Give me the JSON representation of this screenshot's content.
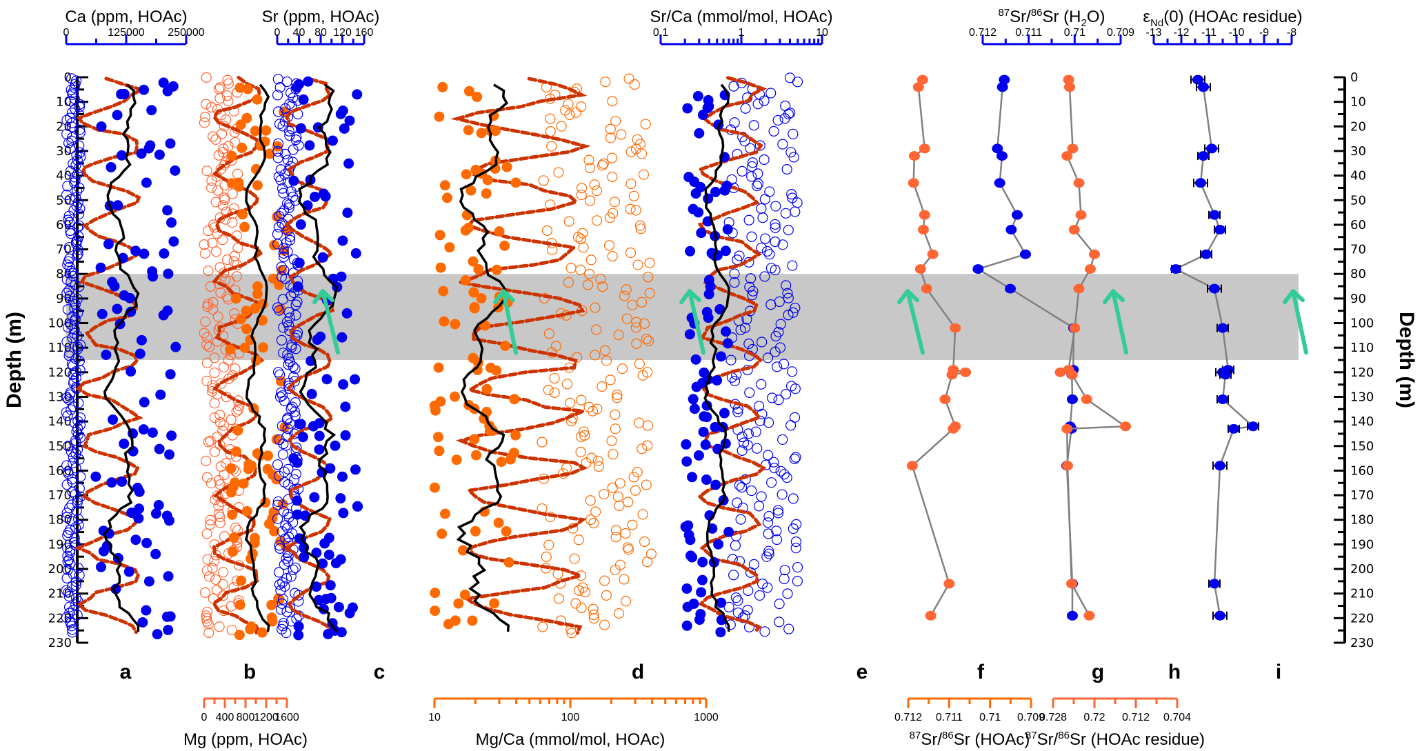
{
  "chart_data": {
    "type": "scatter",
    "title": "",
    "ylabel": "Depth (m)",
    "ylim": [
      0,
      230
    ],
    "yticks": [
      0,
      10,
      20,
      30,
      40,
      50,
      60,
      70,
      80,
      90,
      100,
      110,
      120,
      130,
      140,
      150,
      160,
      170,
      180,
      190,
      200,
      210,
      220,
      230
    ],
    "shaded_interval_m": [
      80,
      115
    ],
    "panel_labels": [
      "a",
      "b",
      "c",
      "d",
      "e",
      "f",
      "g",
      "h",
      "i"
    ],
    "colors": {
      "blue": "#0000ee",
      "orange": "#ff6a00",
      "orange_light": "#ff6633",
      "dashed": "#cc3300",
      "black": "#000000",
      "arrow": "#33cc99",
      "shade": "#c8c8c8",
      "connector": "#808080"
    },
    "axes": [
      {
        "id": "ca",
        "label": "Ca (ppm, HOAc)",
        "position": "top",
        "color": "#0000ee",
        "scale": "linear",
        "range": [
          0,
          250000
        ],
        "ticks": [
          "0",
          "125000",
          "250000"
        ]
      },
      {
        "id": "sr",
        "label": "Sr (ppm, HOAc)",
        "position": "top",
        "color": "#0000ee",
        "scale": "linear",
        "range": [
          0,
          160
        ],
        "ticks": [
          "0",
          "40",
          "80",
          "120",
          "160"
        ]
      },
      {
        "id": "srca",
        "label": "Sr/Ca (mmol/mol, HOAc)",
        "position": "top",
        "color": "#0000ee",
        "scale": "log",
        "range": [
          0.1,
          10
        ],
        "ticks": [
          "0.1",
          "1",
          "10"
        ]
      },
      {
        "id": "srh2o",
        "label_pre": "87",
        "label_mid": "Sr/",
        "label_mid2": "86",
        "label_post": "Sr (H",
        "label_sub": "2",
        "label_end": "O)",
        "position": "top",
        "color": "#0000ee",
        "scale": "linear",
        "range": [
          0.712,
          0.709
        ],
        "ticks": [
          "0.712",
          "0.711",
          "0.71",
          "0.709"
        ]
      },
      {
        "id": "end",
        "label_eps": "ε",
        "label_sub": "Nd",
        "label_post": "(0) (HOAc residue)",
        "position": "top",
        "color": "#0000ee",
        "scale": "linear",
        "range": [
          -13,
          -8
        ],
        "ticks": [
          "-13",
          "-12",
          "-11",
          "-10",
          "-9",
          "-8"
        ]
      },
      {
        "id": "mg",
        "label": "Mg (ppm, HOAc)",
        "position": "bottom",
        "color": "#ff6633",
        "scale": "linear",
        "range": [
          0,
          1600
        ],
        "ticks": [
          "0",
          "400",
          "800",
          "1200",
          "1600"
        ]
      },
      {
        "id": "mgca",
        "label": "Mg/Ca (mmol/mol, HOAc)",
        "position": "bottom",
        "color": "#ff6a00",
        "scale": "log",
        "range": [
          10,
          1000
        ],
        "ticks": [
          "10",
          "100",
          "1000"
        ]
      },
      {
        "id": "srhoac",
        "label_pre": "87",
        "label_mid": "Sr/",
        "label_mid2": "86",
        "label_post": "Sr (HOAc)",
        "position": "bottom",
        "color": "#ff6a00",
        "scale": "linear",
        "range": [
          0.712,
          0.709
        ],
        "ticks": [
          "0.712",
          "0.711",
          "0.71",
          "0.709"
        ]
      },
      {
        "id": "srres",
        "label_pre": "87",
        "label_mid": "Sr/",
        "label_mid2": "86",
        "label_post": "Sr (HOAc residue)",
        "position": "bottom",
        "color": "#ff6633",
        "scale": "linear",
        "range": [
          0.728,
          0.704
        ],
        "ticks": [
          "0.728",
          "0.72",
          "0.712",
          "0.704"
        ]
      }
    ],
    "series": [
      {
        "name": "87Sr/86Sr (HOAc)",
        "panel": "f",
        "axis": "srhoac",
        "color": "#ff6633",
        "style": "filled-line",
        "points": [
          [
            1,
            0.71165
          ],
          [
            4,
            0.71175
          ],
          [
            29,
            0.7116
          ],
          [
            32,
            0.71185
          ],
          [
            43,
            0.71187
          ],
          [
            56,
            0.7116
          ],
          [
            62,
            0.71163
          ],
          [
            72,
            0.7114
          ],
          [
            78,
            0.7117
          ],
          [
            86,
            0.71155
          ],
          [
            102,
            0.71085
          ],
          [
            119,
            0.7109
          ],
          [
            120,
            0.7106
          ],
          [
            121,
            0.71093
          ],
          [
            131,
            0.7111
          ],
          [
            142,
            0.71085
          ],
          [
            143,
            0.7109
          ],
          [
            158,
            0.7119
          ],
          [
            206,
            0.711
          ],
          [
            219,
            0.71145
          ]
        ]
      },
      {
        "name": "87Sr/86Sr (H2O)",
        "panel": "g",
        "axis": "srh2o",
        "color": "#0000ee",
        "style": "filled-line",
        "points": [
          [
            1,
            0.71153
          ],
          [
            4,
            0.71157
          ],
          [
            29,
            0.71168
          ],
          [
            32,
            0.71158
          ],
          [
            43,
            0.71163
          ],
          [
            56,
            0.71125
          ],
          [
            62,
            0.71138
          ],
          [
            72,
            0.71107
          ],
          [
            78,
            0.7121
          ],
          [
            86,
            0.7114
          ],
          [
            102,
            0.71002
          ],
          [
            119,
            0.71003
          ],
          [
            120,
            0.71007
          ],
          [
            121,
            0.71006
          ],
          [
            131,
            0.71005
          ],
          [
            142,
            0.7101
          ],
          [
            143,
            0.71007
          ],
          [
            158,
            0.71017
          ],
          [
            206,
            0.71005
          ],
          [
            219,
            0.71005
          ]
        ]
      },
      {
        "name": "87Sr/86Sr (HOAc residue)",
        "panel": "h",
        "axis": "srres",
        "color": "#ff6633",
        "style": "filled-line",
        "points": [
          [
            1,
            0.725
          ],
          [
            4,
            0.7248
          ],
          [
            29,
            0.7242
          ],
          [
            32,
            0.7253
          ],
          [
            43,
            0.723
          ],
          [
            56,
            0.7226
          ],
          [
            62,
            0.7239
          ],
          [
            72,
            0.72
          ],
          [
            78,
            0.7208
          ],
          [
            86,
            0.723
          ],
          [
            102,
            0.7238
          ],
          [
            119,
            0.725
          ],
          [
            120,
            0.7266
          ],
          [
            121,
            0.7243
          ],
          [
            131,
            0.7215
          ],
          [
            142,
            0.714
          ],
          [
            143,
            0.7253
          ],
          [
            158,
            0.7252
          ],
          [
            206,
            0.7244
          ],
          [
            219,
            0.721
          ]
        ]
      },
      {
        "name": "εNd(0) (HOAc residue)",
        "panel": "i",
        "axis": "end",
        "color": "#0000ee",
        "style": "errorbar-line",
        "points": [
          [
            1,
            -11.4,
            0.25
          ],
          [
            4,
            -11.2,
            0.25
          ],
          [
            29,
            -10.9,
            0.25
          ],
          [
            32,
            -11.2,
            0.2
          ],
          [
            43,
            -11.3,
            0.25
          ],
          [
            56,
            -10.8,
            0.2
          ],
          [
            62,
            -10.6,
            0.2
          ],
          [
            72,
            -11.1,
            0.2
          ],
          [
            78,
            -12.2,
            0.15
          ],
          [
            86,
            -10.8,
            0.25
          ],
          [
            102,
            -10.5,
            0.2
          ],
          [
            119,
            -10.3,
            0.2
          ],
          [
            120,
            -10.5,
            0.25
          ],
          [
            121,
            -10.4,
            0.2
          ],
          [
            131,
            -10.5,
            0.2
          ],
          [
            142,
            -9.4,
            0.2
          ],
          [
            143,
            -10.1,
            0.2
          ],
          [
            158,
            -10.6,
            0.25
          ],
          [
            206,
            -10.8,
            0.2
          ],
          [
            219,
            -10.6,
            0.25
          ]
        ]
      }
    ],
    "dense_series_note": "Panels a-e show ~200 samples each: open circles (individual ratio component), filled circles (bulk), dashed red-brown line (high-frequency signal), black solid line (running mean). Values generated along depth from the visible envelopes.",
    "dense_panels": [
      {
        "panel": "a",
        "axis": "ca",
        "open_color": "#0000ee",
        "filled_color": "#0000ee",
        "open_range": [
          0,
          30000
        ],
        "filled_range": [
          60000,
          230000
        ],
        "mean_range": [
          80000,
          150000
        ]
      },
      {
        "panel": "b",
        "axis": "mg",
        "open_color": "#ff6633",
        "filled_color": "#ff6a00",
        "open_range": [
          0,
          700
        ],
        "filled_range": [
          500,
          1600
        ],
        "mean_range": [
          800,
          1250
        ]
      },
      {
        "panel": "c",
        "axis": "sr",
        "open_color": "#0000ee",
        "filled_color": "#0000ee",
        "open_range": [
          0,
          40
        ],
        "filled_range": [
          30,
          150
        ],
        "mean_range": [
          40,
          110
        ]
      },
      {
        "panel": "d",
        "axis": "mgca",
        "open_color": "#ff6a00",
        "filled_color": "#ff6a00",
        "open_range": [
          60,
          400
        ],
        "filled_range": [
          10,
          40
        ],
        "mean_range": [
          15,
          35
        ]
      },
      {
        "panel": "e",
        "axis": "srca",
        "open_color": "#0000ee",
        "filled_color": "#0000ee",
        "open_range": [
          0.7,
          5
        ],
        "filled_range": [
          0.2,
          0.7
        ],
        "mean_range": [
          0.35,
          0.7
        ]
      }
    ],
    "annotations": [
      {
        "type": "arrow",
        "panels": [
          "b",
          "c",
          "d",
          "e",
          "g",
          "i"
        ],
        "direction": "up",
        "color": "#33cc99"
      }
    ]
  }
}
